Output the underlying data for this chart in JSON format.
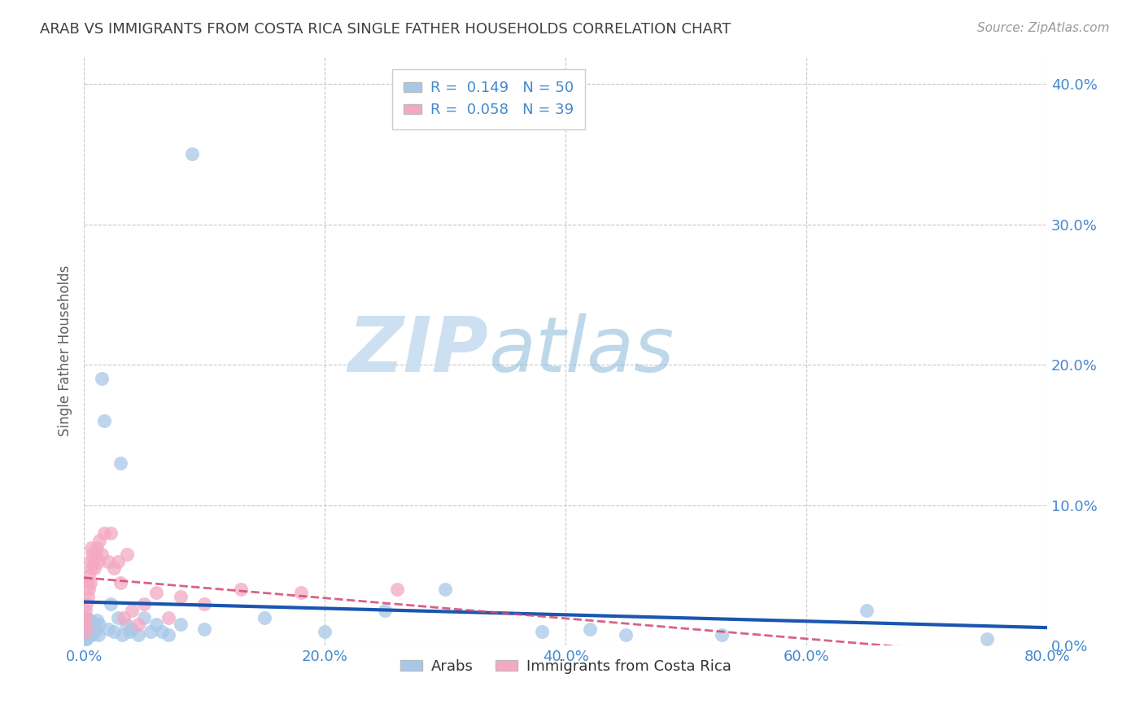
{
  "title": "ARAB VS IMMIGRANTS FROM COSTA RICA SINGLE FATHER HOUSEHOLDS CORRELATION CHART",
  "source": "Source: ZipAtlas.com",
  "ylabel": "Single Father Households",
  "watermark_zip": "ZIP",
  "watermark_atlas": "atlas",
  "legend_arab_R": "0.149",
  "legend_arab_N": "50",
  "legend_cr_R": "0.058",
  "legend_cr_N": "39",
  "xlim": [
    0.0,
    0.8
  ],
  "ylim": [
    0.0,
    0.42
  ],
  "yticks": [
    0.0,
    0.1,
    0.2,
    0.3,
    0.4
  ],
  "xticks": [
    0.0,
    0.2,
    0.4,
    0.6,
    0.8
  ],
  "arab_color": "#a8c8e8",
  "cr_color": "#f4a8c4",
  "arab_line_color": "#1a56b0",
  "cr_line_color": "#d04870",
  "background_color": "#ffffff",
  "grid_color": "#c8c8c8",
  "title_color": "#404040",
  "tick_color": "#4488cc",
  "ylabel_color": "#606060",
  "source_color": "#999999",
  "watermark_color_zip": "#c8ddf0",
  "watermark_color_atlas": "#88b8d8",
  "arab_x": [
    0.001,
    0.001,
    0.001,
    0.002,
    0.002,
    0.002,
    0.003,
    0.003,
    0.004,
    0.004,
    0.005,
    0.005,
    0.006,
    0.007,
    0.008,
    0.009,
    0.01,
    0.011,
    0.012,
    0.013,
    0.015,
    0.017,
    0.02,
    0.022,
    0.025,
    0.028,
    0.03,
    0.032,
    0.035,
    0.038,
    0.04,
    0.045,
    0.05,
    0.055,
    0.06,
    0.065,
    0.07,
    0.08,
    0.09,
    0.1,
    0.15,
    0.2,
    0.25,
    0.3,
    0.38,
    0.42,
    0.45,
    0.53,
    0.65,
    0.75
  ],
  "arab_y": [
    0.005,
    0.01,
    0.015,
    0.005,
    0.01,
    0.02,
    0.008,
    0.012,
    0.007,
    0.015,
    0.01,
    0.018,
    0.012,
    0.008,
    0.015,
    0.01,
    0.012,
    0.018,
    0.008,
    0.015,
    0.19,
    0.16,
    0.012,
    0.03,
    0.01,
    0.02,
    0.13,
    0.008,
    0.015,
    0.01,
    0.012,
    0.008,
    0.02,
    0.01,
    0.015,
    0.01,
    0.008,
    0.015,
    0.35,
    0.012,
    0.02,
    0.01,
    0.025,
    0.04,
    0.01,
    0.012,
    0.008,
    0.008,
    0.025,
    0.005
  ],
  "cr_x": [
    0.001,
    0.001,
    0.001,
    0.002,
    0.002,
    0.003,
    0.003,
    0.004,
    0.004,
    0.005,
    0.005,
    0.006,
    0.006,
    0.007,
    0.008,
    0.009,
    0.01,
    0.011,
    0.012,
    0.013,
    0.015,
    0.017,
    0.02,
    0.022,
    0.025,
    0.028,
    0.03,
    0.033,
    0.036,
    0.04,
    0.045,
    0.05,
    0.06,
    0.07,
    0.08,
    0.1,
    0.13,
    0.18,
    0.26
  ],
  "cr_y": [
    0.015,
    0.02,
    0.025,
    0.01,
    0.03,
    0.035,
    0.045,
    0.04,
    0.05,
    0.045,
    0.06,
    0.055,
    0.07,
    0.065,
    0.06,
    0.055,
    0.065,
    0.07,
    0.06,
    0.075,
    0.065,
    0.08,
    0.06,
    0.08,
    0.055,
    0.06,
    0.045,
    0.02,
    0.065,
    0.025,
    0.015,
    0.03,
    0.038,
    0.02,
    0.035,
    0.03,
    0.04,
    0.038,
    0.04
  ]
}
